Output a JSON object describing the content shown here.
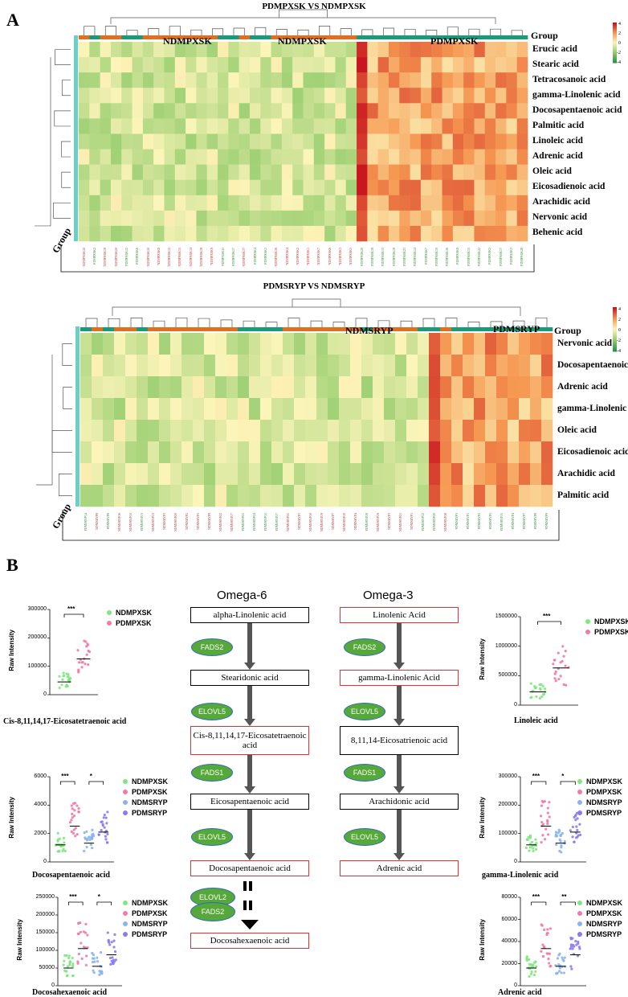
{
  "panelA": {
    "letter": "A",
    "heatmap1": {
      "title": "PDMPXSK VS NDMPXSK",
      "group_header": "Group",
      "group_axis_label": "Group",
      "group_names": [
        "NDMPXSK",
        "NDMPXSK",
        "PDMPXSK"
      ],
      "rows": [
        "Erucic acid",
        "Stearic acid",
        "Tetracosanoic acid",
        "gamma-Linolenic acid",
        "Docosapentaenoic acid",
        "Palmitic acid",
        "Linoleic acid",
        "Adrenic acid",
        "Oleic acid",
        "Eicosadienoic acid",
        "Arachidic acid",
        "Nervonic acid",
        "Behenic acid"
      ],
      "columns": [
        "NDMPXSK10",
        "PDMPXSK2",
        "NDMPXSK19",
        "NDMPXSK20",
        "PDMPXSK12",
        "PDMPXSK6",
        "NDMPXSK10",
        "NDMPXSK8",
        "NDMPXSK12",
        "NDMPXSK15",
        "NDMPXSK14",
        "NDMPXSK18",
        "NDMPXSK9",
        "PDMPXSK11",
        "PDMPXSK17",
        "NDMPXSK17",
        "PDMPXSK4",
        "PDMPXSK1",
        "NDMPXSK16",
        "NDMPXSK4",
        "NDMPXSK2",
        "NDMPXSK1",
        "NDMPXSK7",
        "NDMPXSK6",
        "NDMPXSK3",
        "NDMPXSK5",
        "PDMPXSK20",
        "PDMPXSK18",
        "PDMPXSK13",
        "PDMPXSK19",
        "PDMPXSK21",
        "PDMPXSK14",
        "PDMPXSK7",
        "PDMPXSK10",
        "PDMPXSK16",
        "PDMPXSK8",
        "PDMPXSK15",
        "PDMPXSK22",
        "PDMPXSK5",
        "PDMPXSK17",
        "PDMPXSK3",
        "PDMPXSK28"
      ],
      "legend_ticks": [
        "4",
        "2",
        "0",
        "-2",
        "-4"
      ]
    },
    "heatmap2": {
      "title": "PDMSRYP VS NDMSRYP",
      "group_header": "Group",
      "group_axis_label": "Group",
      "group_names": [
        "NDMSRYP",
        "PDMSRYP"
      ],
      "rows": [
        "Nervonic acid",
        "Docosapentaenoic acid",
        "Adrenic acid",
        "gamma-Linolenic acid",
        "Oleic acid",
        "Eicosadienoic acid",
        "Arachidic acid",
        "Palmitic acid"
      ],
      "columns": [
        "PDMSRYP14",
        "NDMSRYP8",
        "PDMSRYP6",
        "NDMSRYP16",
        "NDMSRYP15",
        "PDMSRYP13",
        "NDMSRYP13",
        "NDMSRYP3",
        "NDMSRYP20",
        "NDMSRYP2",
        "NDMSRYP5",
        "NDMSRYP9",
        "NDMSRYP22",
        "NDMSRYP17",
        "PDMSRYP21",
        "PDMSRYP24",
        "PDMSRYP15",
        "PDMSRYP17",
        "NDMSRYP11",
        "NDMSRYP1",
        "NDMSRYP10",
        "NDMSRYP19",
        "NDMSRYP7",
        "NDMSRYP10",
        "NDMSRYP4",
        "PDMSRYP18",
        "NDMSRYP19",
        "NDMSRYP3",
        "NDMSRYP21",
        "NDMSRYP1",
        "PDMSRYP12",
        "PDMSRYP20",
        "NDMSRYP18",
        "PDMSRYP3",
        "PDMSRYP1",
        "PDMSRYP2",
        "PDMSRYP5",
        "PDMSRYP11",
        "PDMSRYP4",
        "PDMSRYP7",
        "PDMSRYP8",
        "PDMSRYP9"
      ],
      "legend_ticks": [
        "4",
        "2",
        "0",
        "-2",
        "-4"
      ]
    }
  },
  "panelB": {
    "letter": "B",
    "omega6": {
      "header": "Omega-6",
      "steps": [
        "alpha-Linolenic acid",
        "Stearidonic acid",
        "Cis-8,11,14,17-Eicosatetraenoic acid",
        "Eicosapentaenoic acid",
        "Docosapentaenoic acid",
        "Docosahexaenoic acid"
      ],
      "enzymes": [
        "FADS2",
        "ELOVL5",
        "FADS1",
        "ELOVL5",
        "ELOVL2",
        "FADS2"
      ]
    },
    "omega3": {
      "header": "Omega-3",
      "steps": [
        "Linolenic Acid",
        "gamma-Linolenic Acid",
        "8,11,14-Eicosatrienoic acid",
        "Arachidonic acid",
        "Adrenic acid"
      ],
      "enzymes": [
        "FADS2",
        "ELOVL5",
        "FADS1",
        "ELOVL5"
      ]
    },
    "colors": {
      "NDMPXSK": "#7de87d",
      "PDMPXSK": "#f07aa8",
      "NDMSRYP": "#8ab4f0",
      "PDMSRYP": "#8a7cf0"
    },
    "dotplots": [
      {
        "title": "Cis-8,11,14,17-Eicosatetraenoic acid",
        "ylabel": "Raw Intensity",
        "yticks": [
          "300000",
          "200000",
          "100000",
          "0"
        ],
        "legend": [
          "NDMPXSK",
          "PDMPXSK"
        ],
        "sig": [
          "***"
        ]
      },
      {
        "title": "Docosapentaenoic acid",
        "ylabel": "Raw Intensity",
        "yticks": [
          "6000",
          "4000",
          "2000",
          "0"
        ],
        "legend": [
          "NDMPXSK",
          "PDMPXSK",
          "NDMSRYP",
          "PDMSRYP"
        ],
        "sig": [
          "***",
          "*"
        ]
      },
      {
        "title": "Docosahexaenoic acid",
        "ylabel": "Raw Intensity",
        "yticks": [
          "250000",
          "200000",
          "150000",
          "100000",
          "50000",
          "0"
        ],
        "legend": [
          "NDMPXSK",
          "PDMPXSK",
          "NDMSRYP",
          "PDMSRYP"
        ],
        "sig": [
          "***",
          "*"
        ]
      },
      {
        "title": "Linoleic acid",
        "ylabel": "Raw Intensity",
        "yticks": [
          "1500000",
          "1000000",
          "500000",
          "0"
        ],
        "legend": [
          "NDMPXSK",
          "PDMPXSK"
        ],
        "sig": [
          "***"
        ]
      },
      {
        "title": "gamma-Linolenic acid",
        "ylabel": "Raw Intensity",
        "yticks": [
          "300000",
          "200000",
          "100000",
          "0"
        ],
        "legend": [
          "NDMPXSK",
          "PDMPXSK",
          "NDMSRYP",
          "PDMSRYP"
        ],
        "sig": [
          "***",
          "*"
        ]
      },
      {
        "title": "Adrenic acid",
        "ylabel": "Raw Intensity",
        "yticks": [
          "80000",
          "60000",
          "40000",
          "20000",
          "0"
        ],
        "legend": [
          "NDMPXSK",
          "PDMPXSK",
          "NDMSRYP",
          "PDMSRYP"
        ],
        "sig": [
          "***",
          "**"
        ]
      }
    ]
  }
}
